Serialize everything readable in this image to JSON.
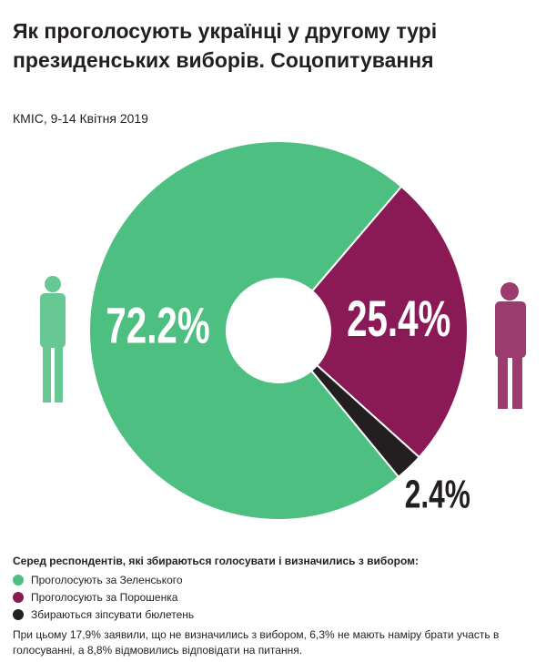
{
  "chart_data": {
    "type": "pie",
    "title": "Як проголосують українці у другому турі президенських виборів. Соцопитування",
    "subtitle": "КМІС, 9-14 Квітня 2019",
    "legend_title": "Серед респондентів, які збираються голосувати і визначились з вибором:",
    "categories": [
      "Проголосують за Зеленського",
      "Проголосують за Порошенка",
      "Збираються зіпсувати бюлетень"
    ],
    "values": [
      72.2,
      25.4,
      2.4
    ],
    "value_labels": [
      "72.2%",
      "25.4%",
      "2.4%"
    ],
    "colors": [
      "#4dbf81",
      "#8a1a55",
      "#231f20"
    ],
    "note": "При цьому 17,9% заявили, що не визначились з вибором, 6,3% не мають наміру брати участь в голосуванні, а 8,8% відмовились відповідати на питання."
  }
}
